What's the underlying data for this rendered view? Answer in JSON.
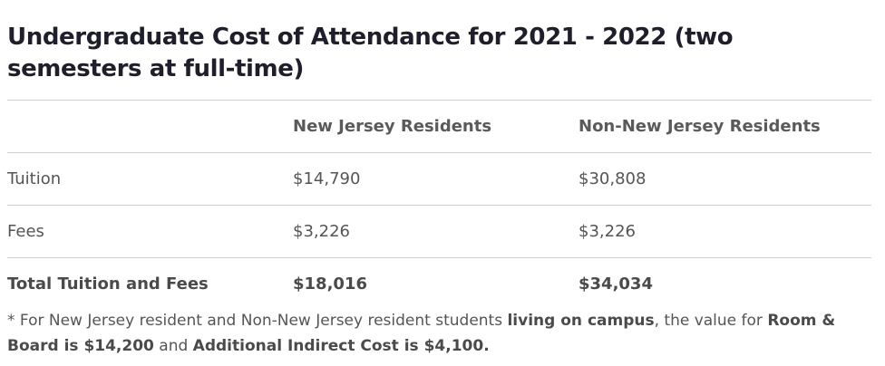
{
  "title": "Undergraduate Cost of Attendance for 2021 - 2022 (two semesters at full-time)",
  "table": {
    "headers": [
      "",
      "New Jersey Residents",
      "Non-New Jersey Residents"
    ],
    "rows": [
      {
        "label": "Tuition",
        "nj": "$14,790",
        "non_nj": "$30,808"
      },
      {
        "label": "Fees",
        "nj": "$3,226",
        "non_nj": "$3,226"
      },
      {
        "label": "Total Tuition and Fees",
        "nj": "$18,016",
        "non_nj": "$34,034"
      }
    ]
  },
  "note": {
    "part1": "* For New Jersey resident and Non-New Jersey resident students ",
    "bold1": "living on campus",
    "part2": ", the value for ",
    "bold2": "Room & Board is $14,200",
    "part3": " and ",
    "bold3": "Additional Indirect Cost is $4,100."
  }
}
